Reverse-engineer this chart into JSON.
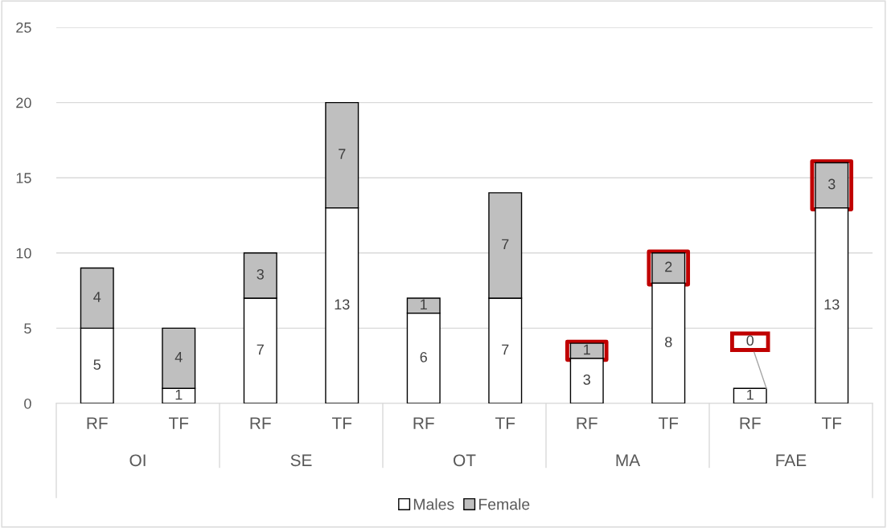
{
  "chart_data": {
    "type": "bar",
    "stacked": true,
    "categories": [
      "RF",
      "TF",
      "RF",
      "TF",
      "RF",
      "TF",
      "RF",
      "TF",
      "RF",
      "TF"
    ],
    "annotations": [
      "OI",
      "SE",
      "OT",
      "MA",
      "FAE"
    ],
    "series": [
      {
        "name": "Males",
        "color": "#ffffff",
        "values": [
          5,
          1,
          7,
          13,
          6,
          7,
          3,
          8,
          1,
          13
        ]
      },
      {
        "name": "Female",
        "color": "#bfbfbf",
        "values": [
          4,
          4,
          3,
          7,
          1,
          7,
          1,
          2,
          0,
          3
        ]
      }
    ],
    "ylim": [
      0,
      25
    ],
    "yticks": [
      0,
      5,
      10,
      15,
      20,
      25
    ],
    "grid": "y",
    "legend": "bottom",
    "data_labels": true
  }
}
